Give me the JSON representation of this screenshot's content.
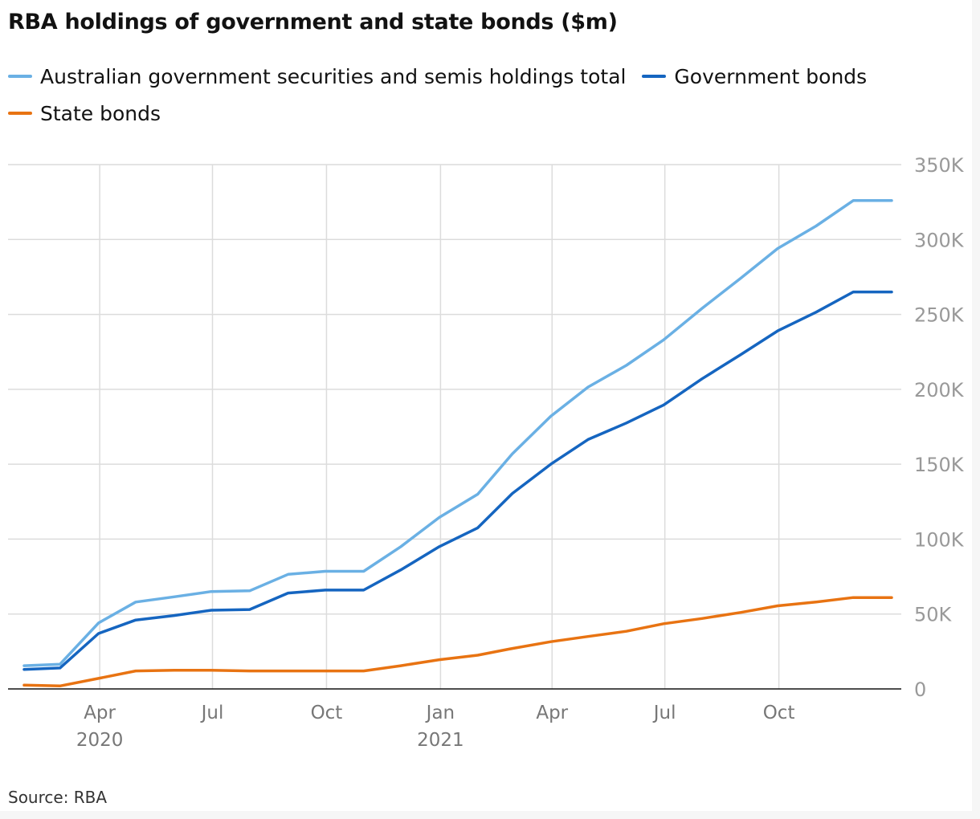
{
  "title": "RBA holdings of government and state bonds ($m)",
  "source": "Source: RBA",
  "colors": {
    "total": "#6ab0e4",
    "government": "#1565c0",
    "state": "#e87312",
    "grid": "#dcdcdc",
    "axis_text": "#999999",
    "axis_line": "#121212"
  },
  "chart_data": {
    "type": "line",
    "ylim": [
      0,
      350000
    ],
    "xlim": [
      "2020-01-31",
      "2021-12-31"
    ],
    "y_ticks": [
      0,
      50000,
      100000,
      150000,
      200000,
      250000,
      300000,
      350000
    ],
    "y_tick_labels": [
      "0",
      "50K",
      "100K",
      "150K",
      "200K",
      "250K",
      "300K",
      "350K"
    ],
    "x_ticks": [
      {
        "date": "2020-04-01",
        "label": "Apr",
        "year": "2020"
      },
      {
        "date": "2020-07-01",
        "label": "Jul",
        "year": ""
      },
      {
        "date": "2020-10-01",
        "label": "Oct",
        "year": ""
      },
      {
        "date": "2021-01-01",
        "label": "Jan",
        "year": "2021"
      },
      {
        "date": "2021-04-01",
        "label": "Apr",
        "year": ""
      },
      {
        "date": "2021-07-01",
        "label": "Jul",
        "year": ""
      },
      {
        "date": "2021-10-01",
        "label": "Oct",
        "year": ""
      }
    ],
    "grid": true,
    "legend_position": "top-left",
    "x": [
      "2020-01-31",
      "2020-02-29",
      "2020-03-31",
      "2020-04-30",
      "2020-05-31",
      "2020-06-30",
      "2020-07-31",
      "2020-08-31",
      "2020-09-30",
      "2020-10-31",
      "2020-11-30",
      "2020-12-31",
      "2021-01-31",
      "2021-02-28",
      "2021-03-31",
      "2021-04-30",
      "2021-05-31",
      "2021-06-30",
      "2021-07-31",
      "2021-08-31",
      "2021-09-30",
      "2021-10-31",
      "2021-11-30",
      "2021-12-31"
    ],
    "series": [
      {
        "name": "Australian government securities and semis holdings total",
        "color_key": "total",
        "values": [
          15500,
          16500,
          44000,
          58000,
          61500,
          65000,
          65500,
          76500,
          78500,
          78500,
          95000,
          114500,
          130000,
          157000,
          182000,
          201500,
          216000,
          233000,
          254000,
          274000,
          294000,
          309000,
          326000,
          326000
        ]
      },
      {
        "name": "Government bonds",
        "color_key": "government",
        "values": [
          13000,
          14000,
          37000,
          46000,
          49000,
          52500,
          53000,
          64000,
          66000,
          66000,
          79500,
          95000,
          107500,
          130500,
          150000,
          166500,
          177500,
          189500,
          207000,
          223000,
          239000,
          251500,
          265000,
          265000
        ]
      },
      {
        "name": "State bonds",
        "color_key": "state",
        "values": [
          2500,
          2000,
          7000,
          12000,
          12500,
          12500,
          12000,
          12000,
          12000,
          12000,
          15500,
          19500,
          22500,
          27000,
          31500,
          35000,
          38500,
          43500,
          47000,
          51000,
          55500,
          58000,
          61000,
          61000
        ]
      }
    ]
  }
}
